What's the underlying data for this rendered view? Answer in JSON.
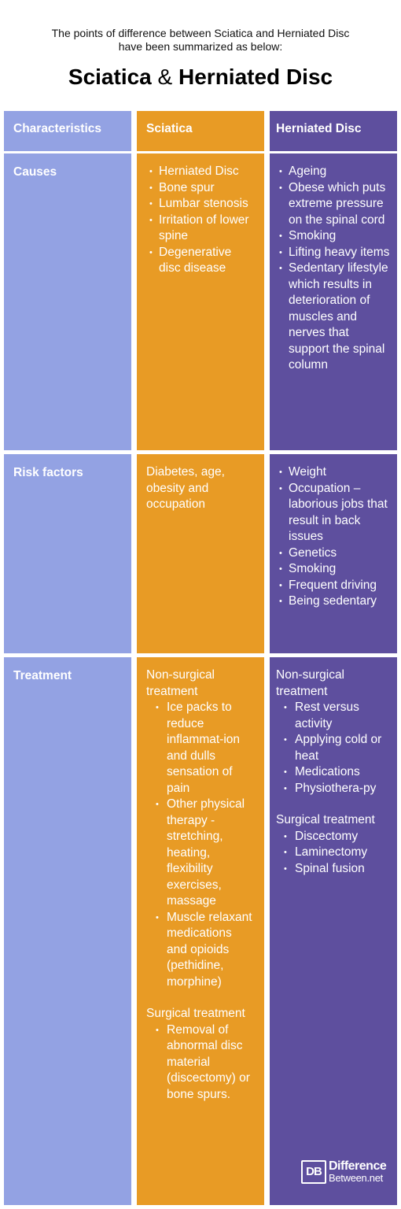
{
  "intro": {
    "line1": "The points of difference between Sciatica and Herniated Disc",
    "line2": "have been summarized as below:"
  },
  "title": {
    "left": "Sciatica",
    "amp": "&",
    "right": "Herniated Disc"
  },
  "columns": {
    "characteristics": "Characteristics",
    "sciatica": "Sciatica",
    "herniated": "Herniated Disc"
  },
  "colors": {
    "characteristics": "#93a2e3",
    "sciatica": "#e89b25",
    "herniated": "#5e4f9e"
  },
  "rows": {
    "causes": {
      "label": "Causes",
      "sciatica": [
        "Herniated Disc",
        "Bone spur",
        "Lumbar stenosis",
        "Irritation of lower spine",
        "Degenerative disc disease"
      ],
      "herniated": [
        "Ageing",
        "Obese which puts extreme pressure on the spinal cord",
        "Smoking",
        "Lifting heavy items",
        "Sedentary lifestyle which results in deterioration of muscles and nerves that support the spinal column"
      ]
    },
    "risk": {
      "label": "Risk factors",
      "sciatica": "Diabetes, age, obesity and occupation",
      "herniated": [
        "Weight",
        "Occupation – laborious jobs that result in back issues",
        "Genetics",
        "Smoking",
        "Frequent driving",
        "Being sedentary"
      ]
    },
    "treatment": {
      "label": "Treatment",
      "sciatica": {
        "nonsurgical_heading": "Non-surgical treatment",
        "nonsurgical": [
          "Ice packs to reduce inflammat-ion and dulls sensation of pain",
          "Other physical therapy - stretching, heating, flexibility exercises, massage",
          "Muscle relaxant medications and opioids (pethidine, morphine)"
        ],
        "surgical_heading": "Surgical treatment",
        "surgical": [
          "Removal of abnormal disc material (discectomy) or bone spurs."
        ]
      },
      "herniated": {
        "nonsurgical_heading": "Non-surgical treatment",
        "nonsurgical": [
          "Rest versus activity",
          "Applying cold or heat",
          "Medications",
          "Physiothera-py"
        ],
        "surgical_heading": "Surgical treatment",
        "surgical": [
          "Discectomy",
          "Laminectomy",
          "Spinal fusion"
        ]
      }
    }
  },
  "logo": {
    "mark": "DB",
    "line1": "Difference",
    "line2": "Between.net"
  }
}
